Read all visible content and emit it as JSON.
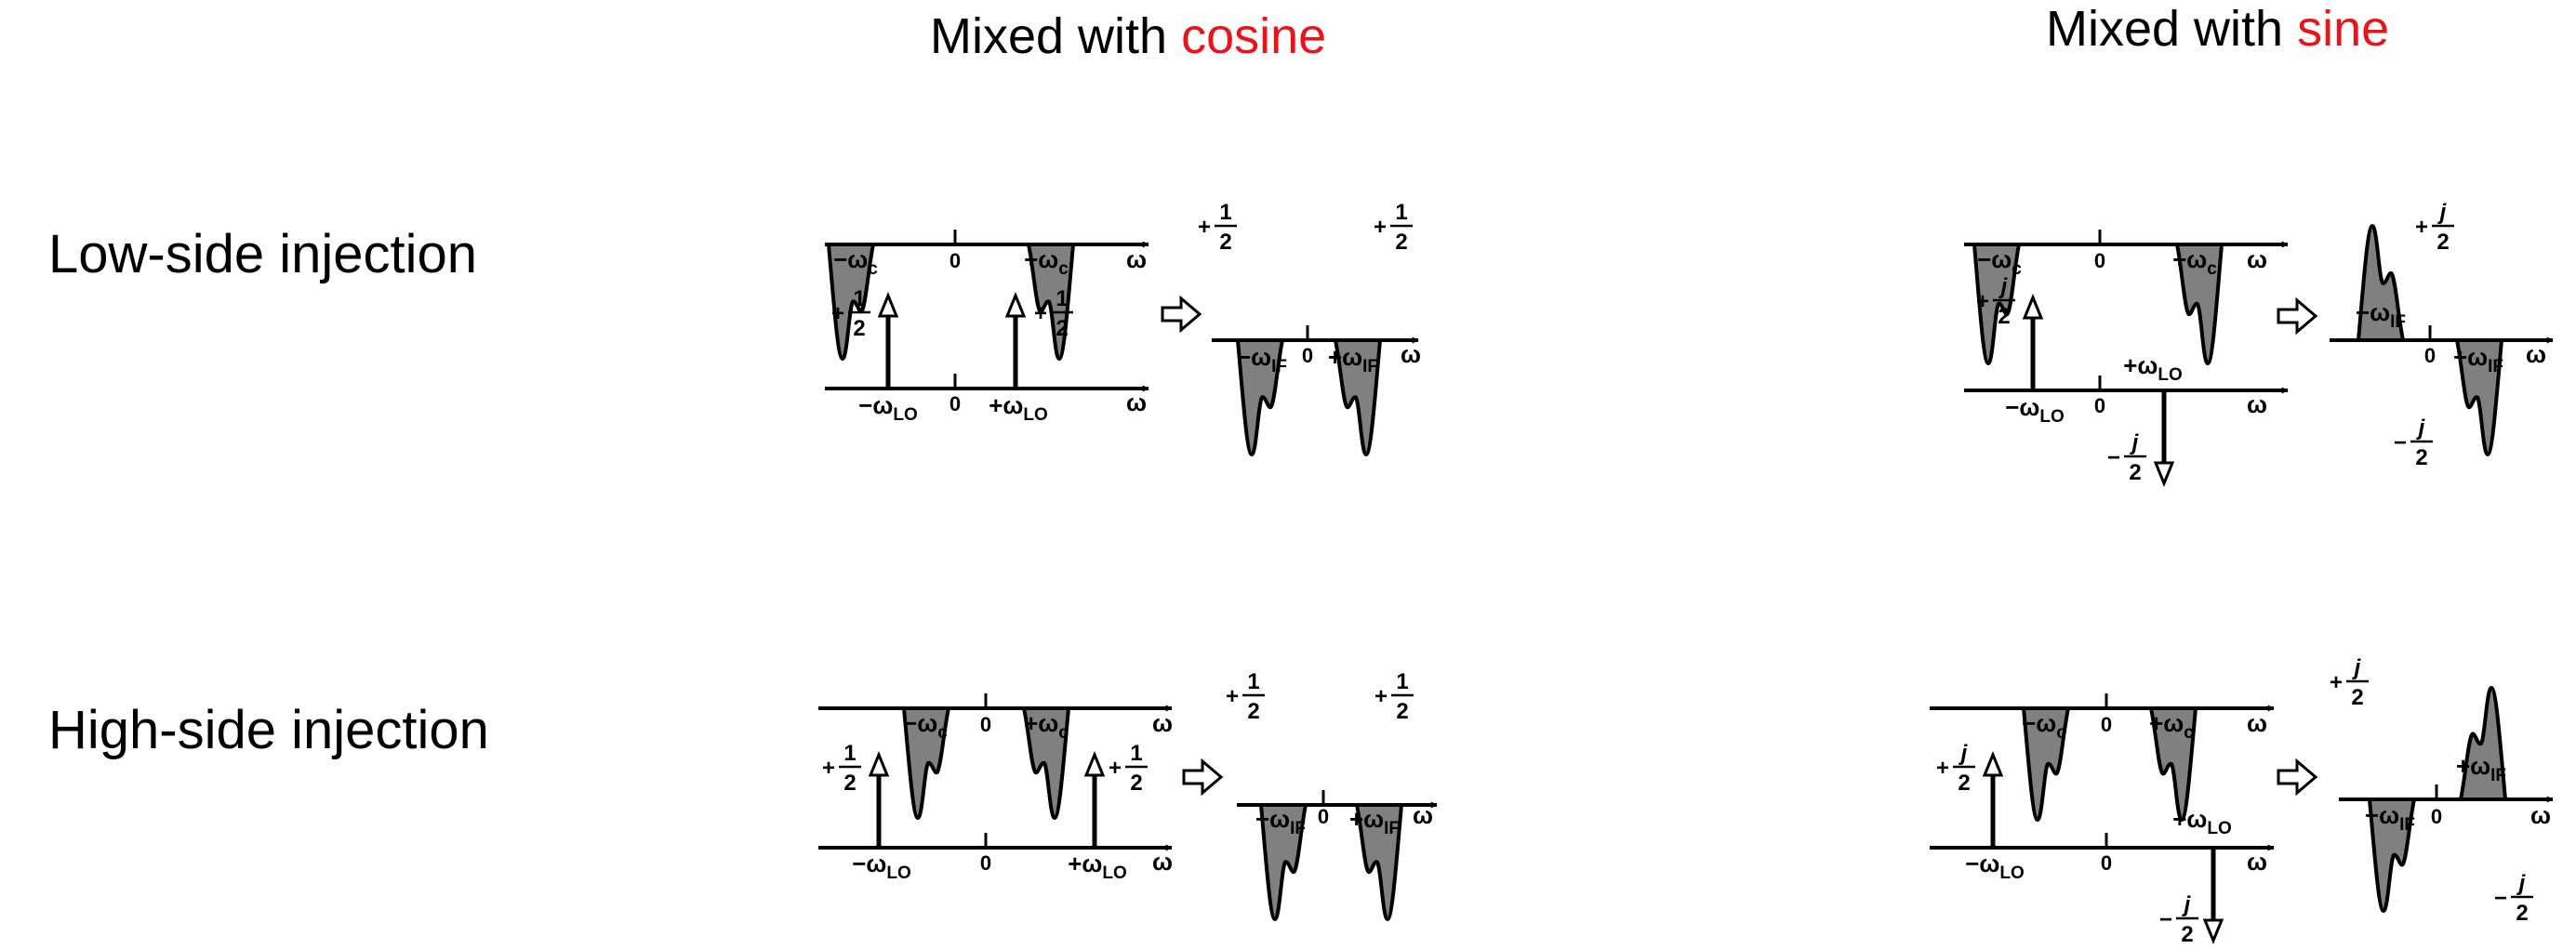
{
  "header_left": {
    "prefix": "Mixed with",
    "accent": "cosine"
  },
  "header_right": {
    "prefix": "Mixed with",
    "accent": "sine"
  },
  "accent_color": "#e8141b",
  "row_labels": {
    "low": "Low-side injection",
    "high": "High-side injection"
  },
  "symbols": {
    "omega": "ω",
    "zero": "0",
    "neg_wc": "−ω",
    "pos_wc": "+ω",
    "sub_c": "c",
    "neg_wlo": "−ω",
    "pos_wlo": "+ω",
    "sub_lo": "LO",
    "neg_wif": "−ω",
    "pos_wif": "+ω",
    "sub_if": "IF",
    "plus": "+",
    "minus": "−",
    "num_1": "1",
    "num_j": "j",
    "den_2": "2"
  },
  "arrow_icon": "hollow-right-arrow-icon"
}
